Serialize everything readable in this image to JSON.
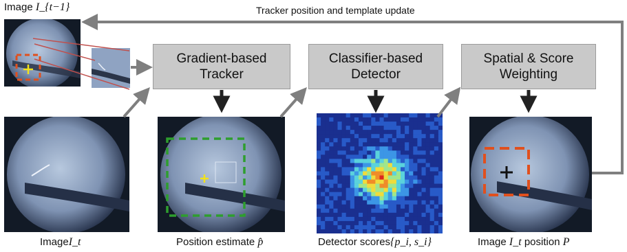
{
  "top_caption": {
    "text": "Image",
    "math": "I_{t−1}"
  },
  "feedback_label": "Tracker position and template update",
  "boxes": {
    "tracker": {
      "line1": "Gradient-based",
      "line2": "Tracker"
    },
    "detector": {
      "line1": "Classifier-based",
      "line2": "Detector"
    },
    "weighting": {
      "line1": "Spatial & Score",
      "line2": "Weighting"
    }
  },
  "captions": {
    "image_t": {
      "text": "Image",
      "math": "I_t"
    },
    "position_estimate": {
      "text": "Position estimate",
      "math": "p̂"
    },
    "detector_scores": {
      "text": "Detector scores",
      "math": "{p_i, s_i}"
    },
    "image_position": {
      "text": "Image",
      "math": "I_t",
      "text2": "position",
      "math2": "P"
    }
  },
  "colors": {
    "box_fill": "#c9c9c9",
    "arrow": "#7f7f7f",
    "dashed_green": "#2e9e2e",
    "dashed_red": "#e0501e",
    "marker_yellow": "#f2e21a"
  }
}
